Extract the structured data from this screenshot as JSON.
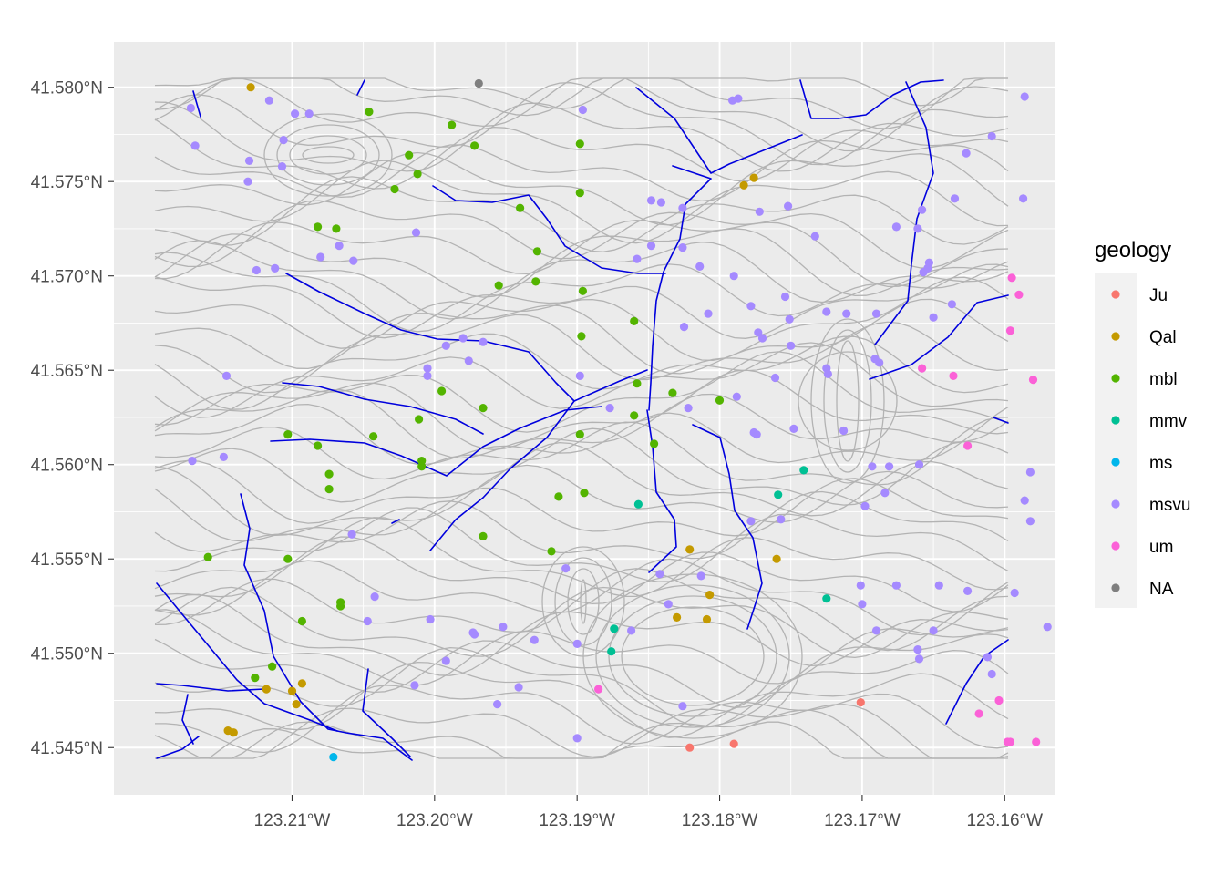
{
  "chart_data": {
    "type": "scatter",
    "x_ticks": [
      {
        "value": -123.21,
        "label": "123.21°W"
      },
      {
        "value": -123.2,
        "label": "123.20°W"
      },
      {
        "value": -123.19,
        "label": "123.19°W"
      },
      {
        "value": -123.18,
        "label": "123.18°W"
      },
      {
        "value": -123.17,
        "label": "123.17°W"
      },
      {
        "value": -123.16,
        "label": "123.16°W"
      }
    ],
    "y_ticks": [
      {
        "value": 41.545,
        "label": "41.545°N"
      },
      {
        "value": 41.55,
        "label": "41.550°N"
      },
      {
        "value": 41.555,
        "label": "41.555°N"
      },
      {
        "value": 41.56,
        "label": "41.560°N"
      },
      {
        "value": 41.565,
        "label": "41.565°N"
      },
      {
        "value": 41.57,
        "label": "41.570°N"
      },
      {
        "value": 41.575,
        "label": "41.575°N"
      },
      {
        "value": 41.58,
        "label": "41.580°N"
      }
    ],
    "xlim": [
      -123.2225,
      -123.1565
    ],
    "ylim": [
      41.5425,
      41.5824
    ],
    "grid": true,
    "legend": {
      "title": "geology",
      "position": "right",
      "entries": [
        {
          "label": "Ju",
          "color": "#F8766D"
        },
        {
          "label": "Qal",
          "color": "#C49A00"
        },
        {
          "label": "mbl",
          "color": "#53B400"
        },
        {
          "label": "mmv",
          "color": "#00C094"
        },
        {
          "label": "ms",
          "color": "#00B6EB"
        },
        {
          "label": "msvu",
          "color": "#A58AFF"
        },
        {
          "label": "um",
          "color": "#FB61D7"
        },
        {
          "label": "NA",
          "color": "#7F7F7F"
        }
      ]
    },
    "points": [
      {
        "x": -123.2129,
        "y": 41.58,
        "g": "Qal"
      },
      {
        "x": -123.1969,
        "y": 41.5802,
        "g": "NA"
      },
      {
        "x": -123.2171,
        "y": 41.5789,
        "g": "msvu"
      },
      {
        "x": -123.2116,
        "y": 41.5793,
        "g": "msvu"
      },
      {
        "x": -123.2098,
        "y": 41.5786,
        "g": "msvu"
      },
      {
        "x": -123.2088,
        "y": 41.5786,
        "g": "msvu"
      },
      {
        "x": -123.2046,
        "y": 41.5787,
        "g": "mbl"
      },
      {
        "x": -123.1988,
        "y": 41.578,
        "g": "mbl"
      },
      {
        "x": -123.1896,
        "y": 41.5788,
        "g": "msvu"
      },
      {
        "x": -123.1791,
        "y": 41.5793,
        "g": "msvu"
      },
      {
        "x": -123.1787,
        "y": 41.5794,
        "g": "msvu"
      },
      {
        "x": -123.1586,
        "y": 41.5795,
        "g": "msvu"
      },
      {
        "x": -123.2168,
        "y": 41.5769,
        "g": "msvu"
      },
      {
        "x": -123.2106,
        "y": 41.5772,
        "g": "msvu"
      },
      {
        "x": -123.1972,
        "y": 41.5769,
        "g": "mbl"
      },
      {
        "x": -123.1898,
        "y": 41.577,
        "g": "mbl"
      },
      {
        "x": -123.1609,
        "y": 41.5774,
        "g": "msvu"
      },
      {
        "x": -123.213,
        "y": 41.5761,
        "g": "msvu"
      },
      {
        "x": -123.2107,
        "y": 41.5758,
        "g": "msvu"
      },
      {
        "x": -123.2018,
        "y": 41.5764,
        "g": "mbl"
      },
      {
        "x": -123.1627,
        "y": 41.5765,
        "g": "msvu"
      },
      {
        "x": -123.2131,
        "y": 41.575,
        "g": "msvu"
      },
      {
        "x": -123.2012,
        "y": 41.5754,
        "g": "mbl"
      },
      {
        "x": -123.2028,
        "y": 41.5746,
        "g": "mbl"
      },
      {
        "x": -123.1776,
        "y": 41.5752,
        "g": "Qal"
      },
      {
        "x": -123.1783,
        "y": 41.5748,
        "g": "Qal"
      },
      {
        "x": -123.194,
        "y": 41.5736,
        "g": "mbl"
      },
      {
        "x": -123.1898,
        "y": 41.5744,
        "g": "mbl"
      },
      {
        "x": -123.1848,
        "y": 41.574,
        "g": "msvu"
      },
      {
        "x": -123.1841,
        "y": 41.5739,
        "g": "msvu"
      },
      {
        "x": -123.1826,
        "y": 41.5736,
        "g": "msvu"
      },
      {
        "x": -123.1772,
        "y": 41.5734,
        "g": "msvu"
      },
      {
        "x": -123.1752,
        "y": 41.5737,
        "g": "msvu"
      },
      {
        "x": -123.1658,
        "y": 41.5735,
        "g": "msvu"
      },
      {
        "x": -123.1635,
        "y": 41.5741,
        "g": "msvu"
      },
      {
        "x": -123.1587,
        "y": 41.5741,
        "g": "msvu"
      },
      {
        "x": -123.2082,
        "y": 41.5726,
        "g": "mbl"
      },
      {
        "x": -123.2069,
        "y": 41.5725,
        "g": "mbl"
      },
      {
        "x": -123.2013,
        "y": 41.5723,
        "g": "msvu"
      },
      {
        "x": -123.1676,
        "y": 41.5726,
        "g": "msvu"
      },
      {
        "x": -123.1661,
        "y": 41.5725,
        "g": "msvu"
      },
      {
        "x": -123.1733,
        "y": 41.5721,
        "g": "msvu"
      },
      {
        "x": -123.2067,
        "y": 41.5716,
        "g": "msvu"
      },
      {
        "x": -123.1848,
        "y": 41.5716,
        "g": "msvu"
      },
      {
        "x": -123.1826,
        "y": 41.5715,
        "g": "msvu"
      },
      {
        "x": -123.1928,
        "y": 41.5713,
        "g": "mbl"
      },
      {
        "x": -123.208,
        "y": 41.571,
        "g": "msvu"
      },
      {
        "x": -123.2057,
        "y": 41.5708,
        "g": "msvu"
      },
      {
        "x": -123.1858,
        "y": 41.5709,
        "g": "msvu"
      },
      {
        "x": -123.1814,
        "y": 41.5705,
        "g": "msvu"
      },
      {
        "x": -123.1653,
        "y": 41.5707,
        "g": "msvu"
      },
      {
        "x": -123.2125,
        "y": 41.5703,
        "g": "msvu"
      },
      {
        "x": -123.2112,
        "y": 41.5704,
        "g": "msvu"
      },
      {
        "x": -123.1654,
        "y": 41.5704,
        "g": "msvu"
      },
      {
        "x": -123.1657,
        "y": 41.5702,
        "g": "msvu"
      },
      {
        "x": -123.179,
        "y": 41.57,
        "g": "msvu"
      },
      {
        "x": -123.1929,
        "y": 41.5697,
        "g": "mbl"
      },
      {
        "x": -123.1955,
        "y": 41.5695,
        "g": "mbl"
      },
      {
        "x": -123.1896,
        "y": 41.5692,
        "g": "mbl"
      },
      {
        "x": -123.1595,
        "y": 41.5699,
        "g": "um"
      },
      {
        "x": -123.159,
        "y": 41.569,
        "g": "um"
      },
      {
        "x": -123.1754,
        "y": 41.5689,
        "g": "msvu"
      },
      {
        "x": -123.1637,
        "y": 41.5685,
        "g": "msvu"
      },
      {
        "x": -123.1778,
        "y": 41.5684,
        "g": "msvu"
      },
      {
        "x": -123.1725,
        "y": 41.5681,
        "g": "msvu"
      },
      {
        "x": -123.1711,
        "y": 41.568,
        "g": "msvu"
      },
      {
        "x": -123.169,
        "y": 41.568,
        "g": "msvu"
      },
      {
        "x": -123.1808,
        "y": 41.568,
        "g": "msvu"
      },
      {
        "x": -123.1751,
        "y": 41.5677,
        "g": "msvu"
      },
      {
        "x": -123.186,
        "y": 41.5676,
        "g": "mbl"
      },
      {
        "x": -123.165,
        "y": 41.5678,
        "g": "msvu"
      },
      {
        "x": -123.1825,
        "y": 41.5673,
        "g": "msvu"
      },
      {
        "x": -123.1596,
        "y": 41.5671,
        "g": "um"
      },
      {
        "x": -123.1773,
        "y": 41.567,
        "g": "msvu"
      },
      {
        "x": -123.1897,
        "y": 41.5668,
        "g": "mbl"
      },
      {
        "x": -123.198,
        "y": 41.5667,
        "g": "msvu"
      },
      {
        "x": -123.1966,
        "y": 41.5665,
        "g": "msvu"
      },
      {
        "x": -123.177,
        "y": 41.5667,
        "g": "msvu"
      },
      {
        "x": -123.1992,
        "y": 41.5663,
        "g": "msvu"
      },
      {
        "x": -123.175,
        "y": 41.5663,
        "g": "msvu"
      },
      {
        "x": -123.1691,
        "y": 41.5656,
        "g": "msvu"
      },
      {
        "x": -123.1688,
        "y": 41.5654,
        "g": "msvu"
      },
      {
        "x": -123.2005,
        "y": 41.5651,
        "g": "msvu"
      },
      {
        "x": -123.1976,
        "y": 41.5655,
        "g": "msvu"
      },
      {
        "x": -123.1725,
        "y": 41.5651,
        "g": "msvu"
      },
      {
        "x": -123.1658,
        "y": 41.5651,
        "g": "um"
      },
      {
        "x": -123.2146,
        "y": 41.5647,
        "g": "msvu"
      },
      {
        "x": -123.2005,
        "y": 41.5647,
        "g": "msvu"
      },
      {
        "x": -123.1898,
        "y": 41.5647,
        "g": "msvu"
      },
      {
        "x": -123.1761,
        "y": 41.5646,
        "g": "msvu"
      },
      {
        "x": -123.1724,
        "y": 41.5648,
        "g": "msvu"
      },
      {
        "x": -123.1636,
        "y": 41.5647,
        "g": "um"
      },
      {
        "x": -123.158,
        "y": 41.5645,
        "g": "um"
      },
      {
        "x": -123.1858,
        "y": 41.5643,
        "g": "mbl"
      },
      {
        "x": -123.1995,
        "y": 41.5639,
        "g": "mbl"
      },
      {
        "x": -123.1833,
        "y": 41.5638,
        "g": "mbl"
      },
      {
        "x": -123.1788,
        "y": 41.5636,
        "g": "msvu"
      },
      {
        "x": -123.18,
        "y": 41.5634,
        "g": "mbl"
      },
      {
        "x": -123.1966,
        "y": 41.563,
        "g": "mbl"
      },
      {
        "x": -123.1877,
        "y": 41.563,
        "g": "msvu"
      },
      {
        "x": -123.1822,
        "y": 41.563,
        "g": "msvu"
      },
      {
        "x": -123.186,
        "y": 41.5626,
        "g": "mbl"
      },
      {
        "x": -123.2011,
        "y": 41.5624,
        "g": "mbl"
      },
      {
        "x": -123.1774,
        "y": 41.5616,
        "g": "msvu"
      },
      {
        "x": -123.1776,
        "y": 41.5617,
        "g": "msvu"
      },
      {
        "x": -123.1748,
        "y": 41.5619,
        "g": "msvu"
      },
      {
        "x": -123.1713,
        "y": 41.5618,
        "g": "msvu"
      },
      {
        "x": -123.2103,
        "y": 41.5616,
        "g": "mbl"
      },
      {
        "x": -123.2043,
        "y": 41.5615,
        "g": "mbl"
      },
      {
        "x": -123.1898,
        "y": 41.5616,
        "g": "mbl"
      },
      {
        "x": -123.2082,
        "y": 41.561,
        "g": "mbl"
      },
      {
        "x": -123.1846,
        "y": 41.5611,
        "g": "mbl"
      },
      {
        "x": -123.1626,
        "y": 41.561,
        "g": "um"
      },
      {
        "x": -123.217,
        "y": 41.5602,
        "g": "msvu"
      },
      {
        "x": -123.2148,
        "y": 41.5604,
        "g": "msvu"
      },
      {
        "x": -123.2009,
        "y": 41.5602,
        "g": "mbl"
      },
      {
        "x": -123.2009,
        "y": 41.5599,
        "g": "mbl"
      },
      {
        "x": -123.1693,
        "y": 41.5599,
        "g": "msvu"
      },
      {
        "x": -123.1681,
        "y": 41.5599,
        "g": "msvu"
      },
      {
        "x": -123.166,
        "y": 41.56,
        "g": "msvu"
      },
      {
        "x": -123.1741,
        "y": 41.5597,
        "g": "mmv"
      },
      {
        "x": -123.1582,
        "y": 41.5596,
        "g": "msvu"
      },
      {
        "x": -123.2074,
        "y": 41.5595,
        "g": "mbl"
      },
      {
        "x": -123.2074,
        "y": 41.5587,
        "g": "mbl"
      },
      {
        "x": -123.1895,
        "y": 41.5585,
        "g": "mbl"
      },
      {
        "x": -123.1913,
        "y": 41.5583,
        "g": "mbl"
      },
      {
        "x": -123.1759,
        "y": 41.5584,
        "g": "mmv"
      },
      {
        "x": -123.1684,
        "y": 41.5585,
        "g": "msvu"
      },
      {
        "x": -123.1857,
        "y": 41.5579,
        "g": "mmv"
      },
      {
        "x": -123.1698,
        "y": 41.5578,
        "g": "msvu"
      },
      {
        "x": -123.1586,
        "y": 41.5581,
        "g": "msvu"
      },
      {
        "x": -123.1757,
        "y": 41.5571,
        "g": "msvu"
      },
      {
        "x": -123.1778,
        "y": 41.557,
        "g": "msvu"
      },
      {
        "x": -123.1582,
        "y": 41.557,
        "g": "msvu"
      },
      {
        "x": -123.2058,
        "y": 41.5563,
        "g": "msvu"
      },
      {
        "x": -123.1966,
        "y": 41.5562,
        "g": "mbl"
      },
      {
        "x": -123.1918,
        "y": 41.5554,
        "g": "mbl"
      },
      {
        "x": -123.2159,
        "y": 41.5551,
        "g": "mbl"
      },
      {
        "x": -123.2103,
        "y": 41.555,
        "g": "mbl"
      },
      {
        "x": -123.1821,
        "y": 41.5555,
        "g": "Qal"
      },
      {
        "x": -123.1908,
        "y": 41.5545,
        "g": "msvu"
      },
      {
        "x": -123.1842,
        "y": 41.5542,
        "g": "msvu"
      },
      {
        "x": -123.1813,
        "y": 41.5541,
        "g": "msvu"
      },
      {
        "x": -123.176,
        "y": 41.555,
        "g": "Qal"
      },
      {
        "x": -123.2042,
        "y": 41.553,
        "g": "msvu"
      },
      {
        "x": -123.1807,
        "y": 41.5531,
        "g": "Qal"
      },
      {
        "x": -123.1701,
        "y": 41.5536,
        "g": "msvu"
      },
      {
        "x": -123.1676,
        "y": 41.5536,
        "g": "msvu"
      },
      {
        "x": -123.1646,
        "y": 41.5536,
        "g": "msvu"
      },
      {
        "x": -123.1626,
        "y": 41.5533,
        "g": "msvu"
      },
      {
        "x": -123.2066,
        "y": 41.5527,
        "g": "mbl"
      },
      {
        "x": -123.2066,
        "y": 41.5525,
        "g": "mbl"
      },
      {
        "x": -123.1836,
        "y": 41.5526,
        "g": "msvu"
      },
      {
        "x": -123.1725,
        "y": 41.5529,
        "g": "mmv"
      },
      {
        "x": -123.17,
        "y": 41.5526,
        "g": "msvu"
      },
      {
        "x": -123.1593,
        "y": 41.5532,
        "g": "msvu"
      },
      {
        "x": -123.2093,
        "y": 41.5517,
        "g": "mbl"
      },
      {
        "x": -123.2047,
        "y": 41.5517,
        "g": "msvu"
      },
      {
        "x": -123.2003,
        "y": 41.5518,
        "g": "msvu"
      },
      {
        "x": -123.183,
        "y": 41.5519,
        "g": "Qal"
      },
      {
        "x": -123.1809,
        "y": 41.5518,
        "g": "Qal"
      },
      {
        "x": -123.1952,
        "y": 41.5514,
        "g": "msvu"
      },
      {
        "x": -123.1874,
        "y": 41.5513,
        "g": "mmv"
      },
      {
        "x": -123.1862,
        "y": 41.5512,
        "g": "msvu"
      },
      {
        "x": -123.1972,
        "y": 41.551,
        "g": "msvu"
      },
      {
        "x": -123.1973,
        "y": 41.5511,
        "g": "msvu"
      },
      {
        "x": -123.193,
        "y": 41.5507,
        "g": "msvu"
      },
      {
        "x": -123.169,
        "y": 41.5512,
        "g": "msvu"
      },
      {
        "x": -123.165,
        "y": 41.5512,
        "g": "msvu"
      },
      {
        "x": -123.157,
        "y": 41.5514,
        "g": "msvu"
      },
      {
        "x": -123.19,
        "y": 41.5505,
        "g": "msvu"
      },
      {
        "x": -123.1876,
        "y": 41.5501,
        "g": "mmv"
      },
      {
        "x": -123.1992,
        "y": 41.5496,
        "g": "msvu"
      },
      {
        "x": -123.1661,
        "y": 41.5502,
        "g": "msvu"
      },
      {
        "x": -123.166,
        "y": 41.5497,
        "g": "msvu"
      },
      {
        "x": -123.1612,
        "y": 41.5498,
        "g": "msvu"
      },
      {
        "x": -123.2114,
        "y": 41.5493,
        "g": "mbl"
      },
      {
        "x": -123.2126,
        "y": 41.5487,
        "g": "mbl"
      },
      {
        "x": -123.1609,
        "y": 41.5489,
        "g": "msvu"
      },
      {
        "x": -123.2118,
        "y": 41.5481,
        "g": "Qal"
      },
      {
        "x": -123.2093,
        "y": 41.5484,
        "g": "Qal"
      },
      {
        "x": -123.21,
        "y": 41.548,
        "g": "Qal"
      },
      {
        "x": -123.2014,
        "y": 41.5483,
        "g": "msvu"
      },
      {
        "x": -123.1941,
        "y": 41.5482,
        "g": "msvu"
      },
      {
        "x": -123.1885,
        "y": 41.5481,
        "g": "um"
      },
      {
        "x": -123.2097,
        "y": 41.5473,
        "g": "Qal"
      },
      {
        "x": -123.1956,
        "y": 41.5473,
        "g": "msvu"
      },
      {
        "x": -123.1826,
        "y": 41.5472,
        "g": "msvu"
      },
      {
        "x": -123.1701,
        "y": 41.5474,
        "g": "Ju"
      },
      {
        "x": -123.1604,
        "y": 41.5475,
        "g": "um"
      },
      {
        "x": -123.1618,
        "y": 41.5468,
        "g": "um"
      },
      {
        "x": -123.2145,
        "y": 41.5459,
        "g": "Qal"
      },
      {
        "x": -123.2141,
        "y": 41.5458,
        "g": "Qal"
      },
      {
        "x": -123.19,
        "y": 41.5455,
        "g": "msvu"
      },
      {
        "x": -123.1598,
        "y": 41.5453,
        "g": "um"
      },
      {
        "x": -123.1596,
        "y": 41.5453,
        "g": "um"
      },
      {
        "x": -123.1578,
        "y": 41.5453,
        "g": "um"
      },
      {
        "x": -123.179,
        "y": 41.5452,
        "g": "Ju"
      },
      {
        "x": -123.1821,
        "y": 41.545,
        "g": "Ju"
      },
      {
        "x": -123.2071,
        "y": 41.5445,
        "g": "ms"
      }
    ]
  }
}
